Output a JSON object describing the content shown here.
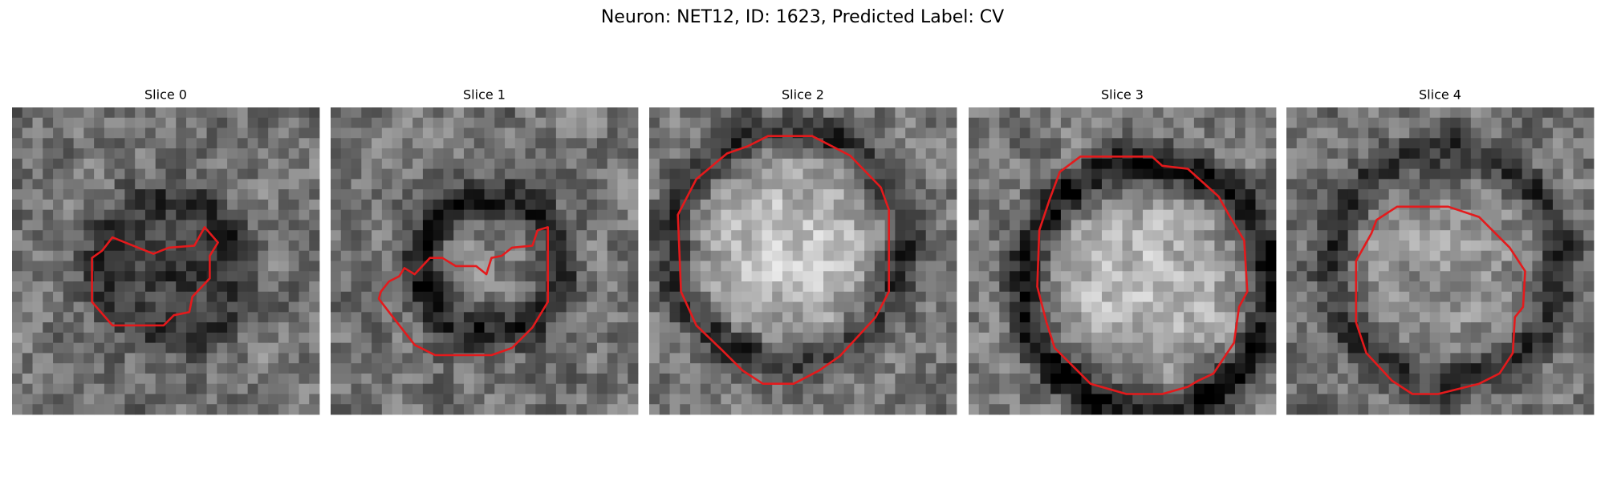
{
  "figure": {
    "title": "Neuron: NET12, ID: 1623, Predicted Label: CV",
    "panels": [
      {
        "title": "Slice 0"
      },
      {
        "title": "Slice 1"
      },
      {
        "title": "Slice 2"
      },
      {
        "title": "Slice 3"
      },
      {
        "title": "Slice 4"
      }
    ]
  }
}
